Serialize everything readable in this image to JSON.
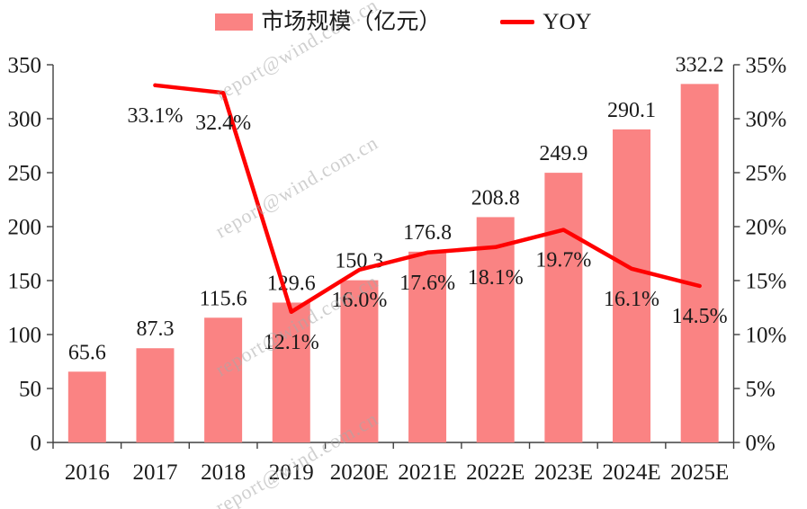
{
  "watermark": {
    "text": "report@wind.com.cn"
  },
  "legend": {
    "items": [
      {
        "label": "市场规模（亿元）",
        "swatch": "bar"
      },
      {
        "label": "YOY",
        "swatch": "line"
      }
    ]
  },
  "chart_data": {
    "type": "combo-bar-line",
    "title": "",
    "categories": [
      "2016",
      "2017",
      "2018",
      "2019",
      "2020E",
      "2021E",
      "2022E",
      "2023E",
      "2024E",
      "2025E"
    ],
    "series": [
      {
        "name": "市场规模（亿元）",
        "type": "bar",
        "axis": "left",
        "color": "#FA8383",
        "values": [
          65.6,
          87.3,
          115.6,
          129.6,
          150.3,
          176.8,
          208.8,
          249.9,
          290.1,
          332.2
        ],
        "labels": [
          "65.6",
          "87.3",
          "115.6",
          "129.6",
          "150.3",
          "176.8",
          "208.8",
          "249.9",
          "290.1",
          "332.2"
        ]
      },
      {
        "name": "YOY",
        "type": "line",
        "axis": "right",
        "color": "#FF0000",
        "values": [
          null,
          33.1,
          32.4,
          12.1,
          16.0,
          17.6,
          18.1,
          19.7,
          16.1,
          14.5
        ],
        "labels": [
          "",
          "33.1%",
          "32.4%",
          "12.1%",
          "16.0%",
          "17.6%",
          "18.1%",
          "19.7%",
          "16.1%",
          "14.5%"
        ]
      }
    ],
    "left_axis": {
      "min": 0,
      "max": 350,
      "step": 50,
      "tick_labels": [
        "0",
        "50",
        "100",
        "150",
        "200",
        "250",
        "300",
        "350"
      ]
    },
    "right_axis": {
      "min": 0,
      "max": 35,
      "step": 5,
      "suffix": "%",
      "tick_labels": [
        "0%",
        "5%",
        "10%",
        "15%",
        "20%",
        "25%",
        "30%",
        "35%"
      ]
    },
    "legend_position": "top",
    "grid": false,
    "background": "#FFFFFF",
    "text_color": "#1A1A1A",
    "axis_color": "#404040"
  }
}
